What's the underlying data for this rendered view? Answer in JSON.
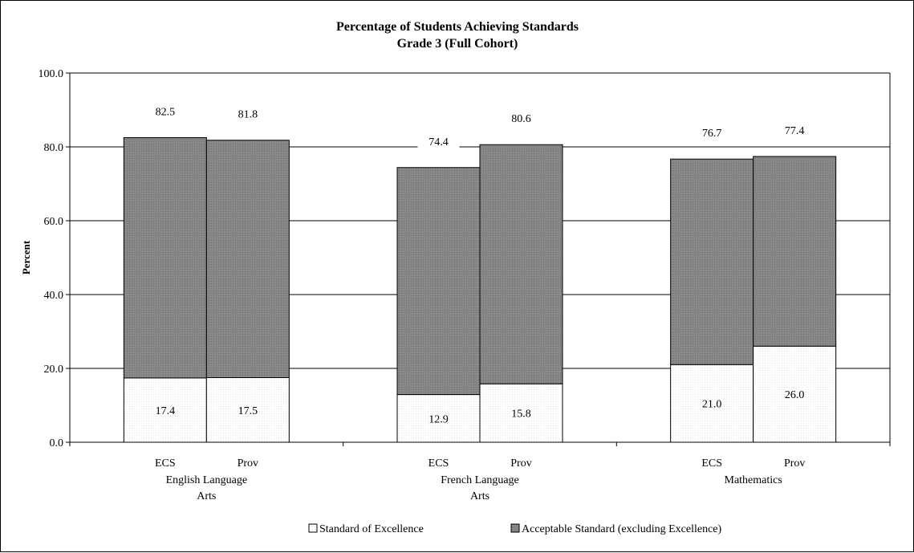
{
  "chart_data": {
    "type": "bar",
    "stacked": true,
    "title": "Percentage of Students Achieving Standards",
    "subtitle": "Grade 3 (Full Cohort)",
    "ylabel": "Percent",
    "ylim": [
      0,
      100
    ],
    "yticks": [
      "0.0",
      "20.0",
      "40.0",
      "60.0",
      "80.0",
      "100.0"
    ],
    "grid": true,
    "groups": [
      {
        "name_lines": [
          "English Language",
          "Arts"
        ],
        "bars": [
          {
            "label": "ECS",
            "excellence": 17.4,
            "total": 82.5
          },
          {
            "label": "Prov",
            "excellence": 17.5,
            "total": 81.8
          }
        ]
      },
      {
        "name_lines": [
          "French Language",
          "Arts"
        ],
        "bars": [
          {
            "label": "ECS",
            "excellence": 12.9,
            "total": 74.4
          },
          {
            "label": "Prov",
            "excellence": 15.8,
            "total": 80.6
          }
        ]
      },
      {
        "name_lines": [
          "Mathematics"
        ],
        "bars": [
          {
            "label": "ECS",
            "excellence": 21.0,
            "total": 76.7
          },
          {
            "label": "Prov",
            "excellence": 26.0,
            "total": 77.4
          }
        ]
      }
    ],
    "series": [
      {
        "name": "Standard of Excellence",
        "color": "#ffffff"
      },
      {
        "name": "Acceptable Standard (excluding Excellence)",
        "color": "#808080"
      }
    ],
    "legend_position": "bottom"
  }
}
